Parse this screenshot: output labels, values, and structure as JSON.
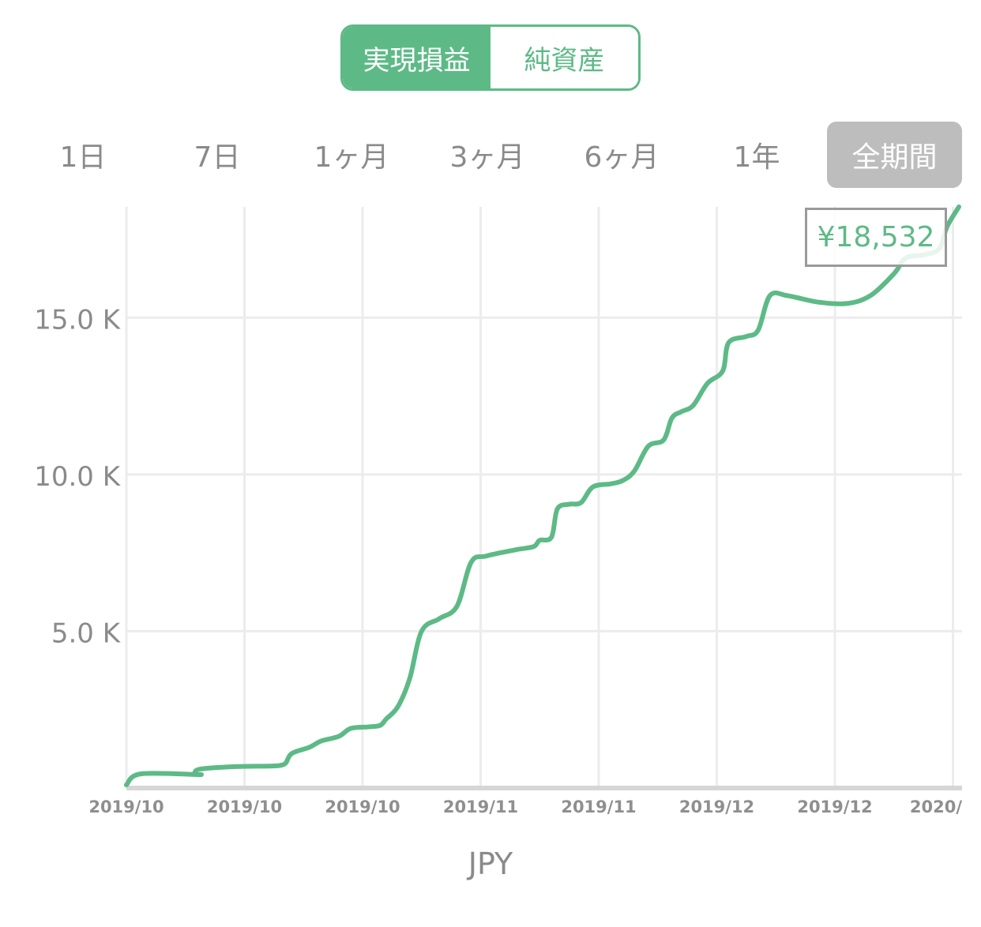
{
  "toggle": {
    "options": [
      {
        "label": "実現損益",
        "active": true
      },
      {
        "label": "純資産",
        "active": false
      }
    ],
    "accent_color": "#5dba86"
  },
  "periods": {
    "items": [
      {
        "label": "1日",
        "active": false
      },
      {
        "label": "7日",
        "active": false
      },
      {
        "label": "1ヶ月",
        "active": false
      },
      {
        "label": "3ヶ月",
        "active": false
      },
      {
        "label": "6ヶ月",
        "active": false
      },
      {
        "label": "1年",
        "active": false
      },
      {
        "label": "全期間",
        "active": true
      }
    ]
  },
  "tooltip": {
    "value": "¥18,532"
  },
  "currency_label": "JPY",
  "chart_data": {
    "type": "line",
    "color": "#5dba86",
    "grid": true,
    "ylim": [
      0,
      18532
    ],
    "yticks": [
      {
        "value": 5000,
        "label": "5.0 K"
      },
      {
        "value": 10000,
        "label": "10.0 K"
      },
      {
        "value": 15000,
        "label": "15.0 K"
      }
    ],
    "xlim": [
      0,
      7.05
    ],
    "xticks": [
      {
        "value": 0,
        "label": "2019/10"
      },
      {
        "value": 1,
        "label": "2019/10"
      },
      {
        "value": 2,
        "label": "2019/10"
      },
      {
        "value": 3,
        "label": "2019/11"
      },
      {
        "value": 4,
        "label": "2019/11"
      },
      {
        "value": 5,
        "label": "2019/12"
      },
      {
        "value": 6,
        "label": "2019/12"
      },
      {
        "value": 7,
        "label": "2020/"
      }
    ],
    "series": [
      {
        "points": [
          [
            0,
            100
          ],
          [
            0.12,
            450
          ],
          [
            0.6,
            430
          ],
          [
            0.6,
            430
          ],
          [
            0.6,
            430
          ],
          [
            0.58,
            450
          ],
          [
            0.62,
            600
          ],
          [
            0.9,
            680
          ],
          [
            1.2,
            700
          ],
          [
            1.3,
            720
          ],
          [
            1.35,
            800
          ],
          [
            1.4,
            1100
          ],
          [
            1.55,
            1300
          ],
          [
            1.65,
            1500
          ],
          [
            1.8,
            1650
          ],
          [
            1.9,
            1900
          ],
          [
            2.05,
            1950
          ],
          [
            2.15,
            2000
          ],
          [
            2.2,
            2200
          ],
          [
            2.3,
            2600
          ],
          [
            2.4,
            3500
          ],
          [
            2.5,
            5000
          ],
          [
            2.65,
            5400
          ],
          [
            2.8,
            5800
          ],
          [
            2.92,
            7200
          ],
          [
            3.05,
            7400
          ],
          [
            3.3,
            7600
          ],
          [
            3.45,
            7700
          ],
          [
            3.5,
            7900
          ],
          [
            3.6,
            8000
          ],
          [
            3.65,
            8900
          ],
          [
            3.75,
            9050
          ],
          [
            3.85,
            9100
          ],
          [
            3.95,
            9600
          ],
          [
            4.1,
            9700
          ],
          [
            4.2,
            9800
          ],
          [
            4.3,
            10100
          ],
          [
            4.42,
            10900
          ],
          [
            4.55,
            11100
          ],
          [
            4.62,
            11800
          ],
          [
            4.7,
            12000
          ],
          [
            4.8,
            12200
          ],
          [
            4.92,
            12900
          ],
          [
            5.05,
            13300
          ],
          [
            5.1,
            14200
          ],
          [
            5.25,
            14400
          ],
          [
            5.35,
            14600
          ],
          [
            5.45,
            15700
          ],
          [
            5.6,
            15700
          ],
          [
            5.85,
            15500
          ],
          [
            6.1,
            15450
          ],
          [
            6.3,
            15700
          ],
          [
            6.5,
            16400
          ],
          [
            6.6,
            16900
          ],
          [
            6.75,
            17000
          ],
          [
            6.85,
            17100
          ],
          [
            6.9,
            17300
          ],
          [
            6.95,
            17900
          ],
          [
            7.05,
            18532
          ]
        ]
      }
    ]
  }
}
